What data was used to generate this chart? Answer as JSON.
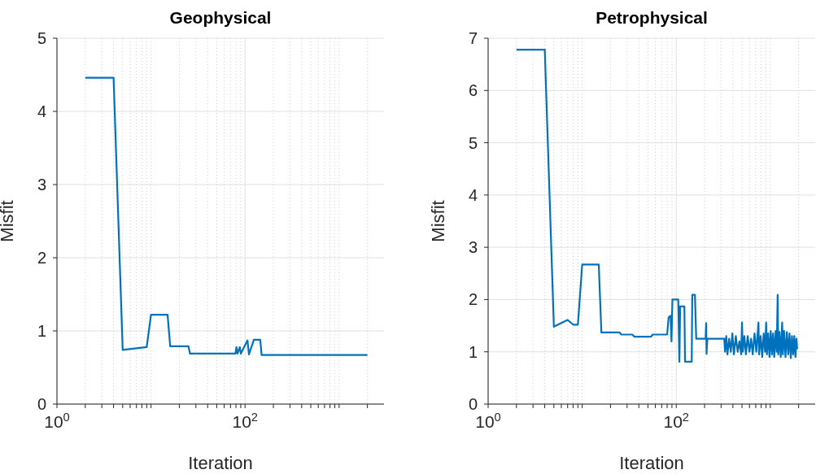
{
  "chart_data": [
    {
      "type": "line",
      "title": "Geophysical",
      "xlabel": "Iteration",
      "ylabel": "Misfit",
      "log": "x",
      "grid": true,
      "line_style": "solid",
      "xlim": [
        1,
        3000
      ],
      "xticks": [
        {
          "value": 1,
          "label": "10$^{0}$"
        },
        {
          "value": 2,
          "label": null
        },
        {
          "value": 3,
          "label": null
        },
        {
          "value": 4,
          "label": null
        },
        {
          "value": 5,
          "label": null
        },
        {
          "value": 6,
          "label": null
        },
        {
          "value": 7,
          "label": null
        },
        {
          "value": 8,
          "label": null
        },
        {
          "value": 9,
          "label": null
        },
        {
          "value": 10,
          "label": null
        },
        {
          "value": 20,
          "label": null
        },
        {
          "value": 30,
          "label": null
        },
        {
          "value": 40,
          "label": null
        },
        {
          "value": 50,
          "label": null
        },
        {
          "value": 60,
          "label": null
        },
        {
          "value": 70,
          "label": null
        },
        {
          "value": 80,
          "label": null
        },
        {
          "value": 90,
          "label": null
        },
        {
          "value": 100,
          "label": "10$^{2}$"
        },
        {
          "value": 200,
          "label": null
        },
        {
          "value": 300,
          "label": null
        },
        {
          "value": 400,
          "label": null
        },
        {
          "value": 500,
          "label": null
        },
        {
          "value": 600,
          "label": null
        },
        {
          "value": 700,
          "label": null
        },
        {
          "value": 800,
          "label": null
        },
        {
          "value": 900,
          "label": null
        },
        {
          "value": 1000,
          "label": null
        },
        {
          "value": 2000,
          "label": null
        }
      ],
      "ylim": [
        0,
        5
      ],
      "yticks": [
        0,
        1,
        2,
        3,
        4,
        5
      ],
      "series": [
        {
          "color": "#0072bd",
          "x": [
            2,
            4,
            5,
            9,
            10,
            15,
            16,
            25,
            26,
            79,
            81,
            83,
            88,
            90,
            106,
            110,
            124,
            145,
            150,
            2000
          ],
          "values": [
            4.46,
            4.46,
            0.74,
            0.78,
            1.22,
            1.22,
            0.79,
            0.79,
            0.69,
            0.69,
            0.78,
            0.69,
            0.78,
            0.69,
            0.87,
            0.68,
            0.88,
            0.88,
            0.67,
            0.67
          ]
        }
      ]
    },
    {
      "type": "line",
      "title": "Petrophysical",
      "xlabel": "Iteration",
      "ylabel": "Misfit",
      "log": "x",
      "grid": true,
      "line_style": "solid",
      "xlim": [
        1,
        3000
      ],
      "xticks": [
        {
          "value": 1,
          "label": "10$^{0}$"
        },
        {
          "value": 2,
          "label": null
        },
        {
          "value": 3,
          "label": null
        },
        {
          "value": 4,
          "label": null
        },
        {
          "value": 5,
          "label": null
        },
        {
          "value": 6,
          "label": null
        },
        {
          "value": 7,
          "label": null
        },
        {
          "value": 8,
          "label": null
        },
        {
          "value": 9,
          "label": null
        },
        {
          "value": 10,
          "label": null
        },
        {
          "value": 20,
          "label": null
        },
        {
          "value": 30,
          "label": null
        },
        {
          "value": 40,
          "label": null
        },
        {
          "value": 50,
          "label": null
        },
        {
          "value": 60,
          "label": null
        },
        {
          "value": 70,
          "label": null
        },
        {
          "value": 80,
          "label": null
        },
        {
          "value": 90,
          "label": null
        },
        {
          "value": 100,
          "label": "10$^{2}$"
        },
        {
          "value": 200,
          "label": null
        },
        {
          "value": 300,
          "label": null
        },
        {
          "value": 400,
          "label": null
        },
        {
          "value": 500,
          "label": null
        },
        {
          "value": 600,
          "label": null
        },
        {
          "value": 700,
          "label": null
        },
        {
          "value": 800,
          "label": null
        },
        {
          "value": 900,
          "label": null
        },
        {
          "value": 1000,
          "label": null
        },
        {
          "value": 2000,
          "label": null
        }
      ],
      "ylim": [
        0,
        7
      ],
      "yticks": [
        0,
        1,
        2,
        3,
        4,
        5,
        6,
        7
      ],
      "series": [
        {
          "color": "#0072bd",
          "x": [
            2,
            4,
            5,
            7,
            8,
            9,
            10,
            15,
            16,
            25,
            26,
            34,
            36,
            54,
            56,
            80,
            83,
            87,
            89,
            91,
            105,
            108,
            110,
            122,
            124,
            146,
            148,
            158,
            163,
            205,
            208,
            210,
            214,
            324,
            330,
            340,
            350,
            365,
            380,
            395,
            410,
            430,
            450,
            470,
            490,
            500,
            510,
            530,
            550,
            575,
            600,
            625,
            650,
            680,
            710,
            748,
            760,
            790,
            820,
            850,
            880,
            903,
            920,
            950,
            980,
            1010,
            1040,
            1070,
            1100,
            1140,
            1170,
            1197,
            1215,
            1250,
            1290,
            1337,
            1360,
            1400,
            1450,
            1500,
            1550,
            1600,
            1650,
            1700,
            1750,
            1800,
            1850,
            1900,
            1930
          ],
          "values": [
            6.78,
            6.78,
            1.48,
            1.61,
            1.52,
            1.52,
            2.67,
            2.67,
            1.37,
            1.37,
            1.33,
            1.33,
            1.29,
            1.29,
            1.33,
            1.33,
            1.66,
            1.69,
            1.2,
            2.0,
            2.0,
            0.81,
            1.87,
            1.87,
            0.81,
            0.81,
            2.09,
            2.09,
            1.25,
            1.25,
            1.55,
            0.96,
            1.25,
            1.25,
            1.0,
            1.3,
            0.95,
            1.25,
            1.0,
            1.35,
            0.95,
            1.3,
            1.0,
            1.2,
            0.95,
            1.56,
            1.0,
            1.3,
            0.95,
            1.3,
            1.0,
            1.25,
            0.95,
            1.35,
            1.0,
            1.56,
            0.95,
            1.3,
            0.9,
            1.35,
            1.0,
            1.56,
            0.95,
            1.35,
            0.9,
            1.4,
            0.95,
            1.35,
            0.9,
            1.4,
            1.0,
            2.09,
            0.95,
            1.38,
            0.9,
            1.56,
            0.95,
            1.4,
            0.9,
            1.38,
            0.95,
            1.35,
            0.88,
            1.3,
            0.95,
            1.3,
            0.9,
            1.25,
            1.05
          ]
        }
      ]
    }
  ]
}
